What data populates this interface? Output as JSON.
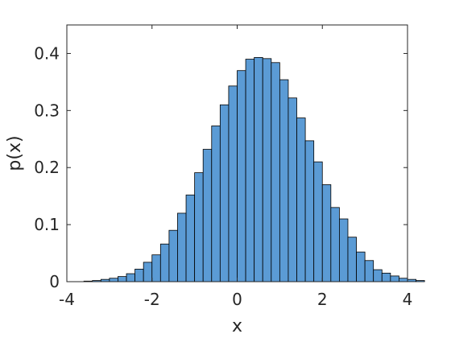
{
  "chart_data": {
    "type": "bar",
    "title": "",
    "xlabel": "x",
    "ylabel": "p(x)",
    "xlim": [
      -4,
      4
    ],
    "ylim": [
      0,
      0.45
    ],
    "xticks": [
      -4,
      -2,
      0,
      2,
      4
    ],
    "yticks": [
      0,
      0.1,
      0.2,
      0.3,
      0.4
    ],
    "xtick_labels": [
      "-4",
      "-2",
      "0",
      "2",
      "4"
    ],
    "ytick_labels": [
      "0",
      "0.1",
      "0.2",
      "0.3",
      "0.4"
    ],
    "grid": false,
    "bar_color": "#5B9BD5",
    "bin_width": 0.2,
    "bin_edges_start": -3.6,
    "values": [
      0.001,
      0.002,
      0.004,
      0.006,
      0.009,
      0.014,
      0.022,
      0.034,
      0.047,
      0.066,
      0.09,
      0.12,
      0.152,
      0.191,
      0.232,
      0.273,
      0.31,
      0.343,
      0.37,
      0.39,
      0.393,
      0.391,
      0.384,
      0.354,
      0.322,
      0.287,
      0.247,
      0.21,
      0.17,
      0.13,
      0.11,
      0.078,
      0.052,
      0.037,
      0.021,
      0.015,
      0.01,
      0.006,
      0.004,
      0.002
    ]
  }
}
